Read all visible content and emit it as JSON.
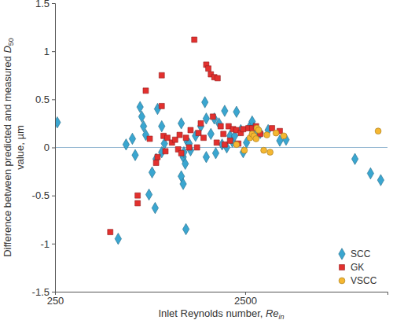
{
  "chart_data": {
    "type": "scatter",
    "x_label": [
      "Inlet Reynolds number, ",
      "Re",
      "in"
    ],
    "y_label": [
      "Difference between predicted and measured ",
      "D",
      "50",
      "value, µm"
    ],
    "log": "x",
    "xlim": [
      250,
      14000
    ],
    "xticks": [
      250,
      2500
    ],
    "ylim": [
      -1.5,
      1.5
    ],
    "yticks": [
      -1.5,
      -1,
      -0.5,
      0,
      0.5,
      1,
      1.5
    ],
    "hline": 0,
    "grid": false,
    "legend": "bottom-right",
    "series": [
      {
        "name": "SCC",
        "color": "#3aa6d0",
        "marker": "diamond",
        "x": [
          257,
          537,
          591,
          638,
          660,
          700,
          715,
          730,
          750,
          780,
          810,
          850,
          865,
          910,
          910,
          940,
          840,
          1220,
          1153,
          1153,
          1180,
          1180,
          1210,
          1190,
          1240,
          1268,
          1290,
          1370,
          1460,
          1535,
          1560,
          1560,
          1650,
          1720,
          1750,
          1820,
          1890,
          1950,
          2000,
          2080,
          2140,
          2200,
          2250,
          2370,
          2440,
          2540,
          2650,
          2720,
          2780,
          2880,
          3000,
          3300,
          3800,
          4100,
          9440,
          11400,
          12900
        ],
        "values": [
          0.26,
          -0.95,
          0.03,
          0.09,
          -0.08,
          0.42,
          0.32,
          0.22,
          0.13,
          -0.49,
          -0.26,
          -0.12,
          0.4,
          0.22,
          -0.05,
          0.04,
          -0.63,
          -0.85,
          0.25,
          -0.3,
          -0.38,
          -0.1,
          -0.17,
          -0.05,
          0.06,
          0.04,
          -0.03,
          0.12,
          0.22,
          0.47,
          0.3,
          -0.1,
          0.14,
          0.3,
          -0.06,
          0.25,
          0.03,
          0.38,
          0.0,
          0.12,
          0.06,
          0.12,
          0.37,
          0.18,
          -0.05,
          0.05,
          0.22,
          0.27,
          0.2,
          0.13,
          0.15,
          0.18,
          0.07,
          0.08,
          -0.12,
          -0.27,
          -0.34
        ]
      },
      {
        "name": "GK",
        "color": "#e3302e",
        "marker": "square",
        "x": [
          488,
          680,
          680,
          750,
          787,
          850,
          865,
          910,
          910,
          930,
          952,
          975,
          1030,
          1070,
          1110,
          1130,
          1153,
          1220,
          1268,
          1290,
          1350,
          1395,
          1420,
          1460,
          1510,
          1560,
          1600,
          1650,
          1720,
          1790,
          1690,
          1770,
          1858,
          1920,
          1950,
          2045,
          2080,
          2160,
          2250,
          2300,
          2370,
          2440,
          2600,
          2720,
          2850,
          3000,
          3460,
          3800
        ],
        "values": [
          -0.88,
          -0.5,
          -0.58,
          0.59,
          0.09,
          -0.16,
          -0.1,
          0.75,
          0.43,
          0.12,
          -0.04,
          0.1,
          0.05,
          0.08,
          -0.02,
          0.13,
          -0.06,
          0.1,
          0.0,
          0.18,
          1.12,
          0.0,
          0.15,
          0.25,
          0.1,
          0.86,
          0.82,
          0.76,
          0.73,
          0.72,
          0.32,
          0.05,
          0.22,
          0.14,
          0.03,
          0.22,
          0.07,
          0.19,
          0.18,
          0.04,
          0.15,
          0.19,
          0.2,
          0.2,
          0.22,
          0.14,
          0.2,
          0.17
        ]
      },
      {
        "name": "VSCC",
        "color": "#f5b731",
        "marker": "circle",
        "x": [
          2250,
          2475,
          2650,
          2720,
          2780,
          2850,
          2880,
          2940,
          3130,
          3250,
          3380,
          3630,
          3990,
          12500
        ],
        "values": [
          0.03,
          -0.03,
          0.1,
          0.14,
          0.12,
          0.09,
          0.2,
          0.18,
          -0.03,
          0.13,
          -0.05,
          0.15,
          0.12,
          0.17
        ]
      }
    ]
  }
}
